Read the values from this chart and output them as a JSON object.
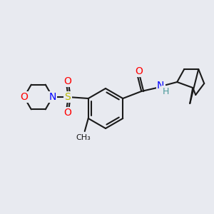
{
  "background_color": "#e8eaf0",
  "bond_color": "#1a1a1a",
  "bond_width": 1.5,
  "colors": {
    "O": "#ff0000",
    "N": "#0000ff",
    "S": "#b8b800",
    "C": "#1a1a1a",
    "NH": "#4a9a9a"
  },
  "font_size": 9
}
